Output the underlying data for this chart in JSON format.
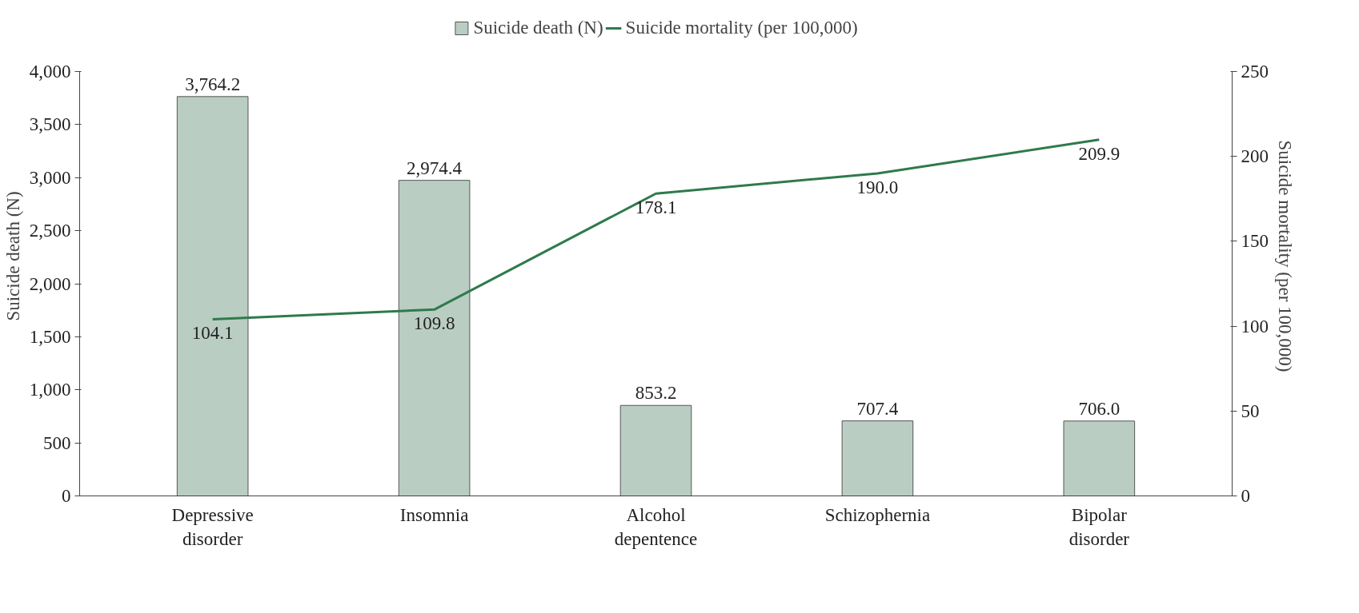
{
  "chart_data": {
    "type": "bar",
    "categories": [
      "Depressive\ndisorder",
      "Insomnia",
      "Alcohol\ndepentence",
      "Schizophernia",
      "Bipolar\ndisorder"
    ],
    "ylabel": "Suicide death (N)",
    "y2label": "Suicide mortality (per 100,000)",
    "ylim": [
      0,
      4000
    ],
    "yticks": [
      {
        "value": 0,
        "label": "0"
      },
      {
        "value": 500,
        "label": "500"
      },
      {
        "value": 1000,
        "label": "1,000"
      },
      {
        "value": 1500,
        "label": "1,500"
      },
      {
        "value": 2000,
        "label": "2,000"
      },
      {
        "value": 2500,
        "label": "2,500"
      },
      {
        "value": 3000,
        "label": "3,000"
      },
      {
        "value": 3500,
        "label": "3,500"
      },
      {
        "value": 4000,
        "label": "4,000"
      }
    ],
    "y2lim": [
      0,
      250
    ],
    "y2ticks": [
      0,
      50,
      100,
      150,
      200,
      250
    ],
    "series": [
      {
        "name": "Suicide death (N)",
        "type": "bar",
        "color": "#bacdc2",
        "values": [
          3764.2,
          2974.4,
          853.2,
          707.4,
          706.0
        ],
        "value_labels": [
          "3,764.2",
          "2,974.4",
          "853.2",
          "707.4",
          "706.0"
        ]
      },
      {
        "name": "Suicide mortality (per 100,000)",
        "type": "line",
        "axis": "y2",
        "color": "#2f7a4c",
        "values": [
          104.1,
          109.8,
          178.1,
          190.0,
          209.9
        ],
        "value_labels": [
          "104.1",
          "109.8",
          "178.1",
          "190.0",
          "209.9"
        ]
      }
    ],
    "legend": "top",
    "grid": false
  }
}
